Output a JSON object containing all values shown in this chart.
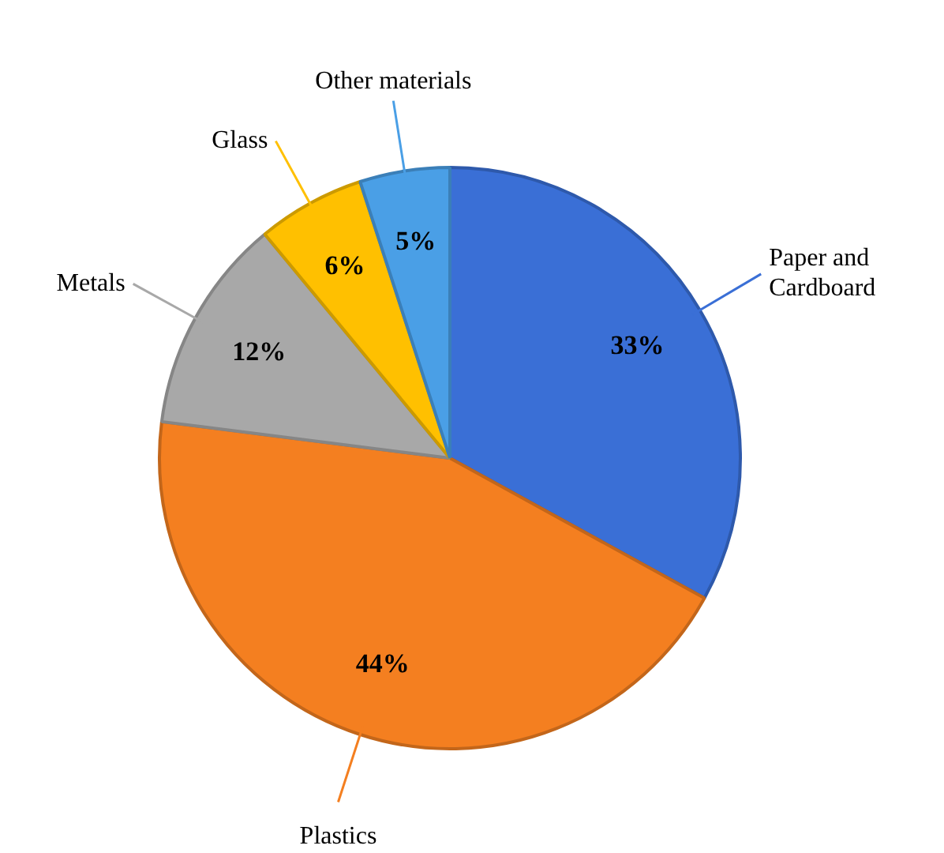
{
  "chart_data": {
    "type": "pie",
    "categories": [
      "Paper and Cardboard",
      "Plastics",
      "Metals",
      "Glass",
      "Other materials"
    ],
    "values": [
      33,
      44,
      12,
      6,
      5
    ],
    "colors": [
      "#3a6fd6",
      "#f47f20",
      "#a8a8a8",
      "#ffc000",
      "#4a9fe6"
    ],
    "value_labels": [
      "33%",
      "44%",
      "12%",
      "6%",
      "5%"
    ],
    "legend": false
  }
}
